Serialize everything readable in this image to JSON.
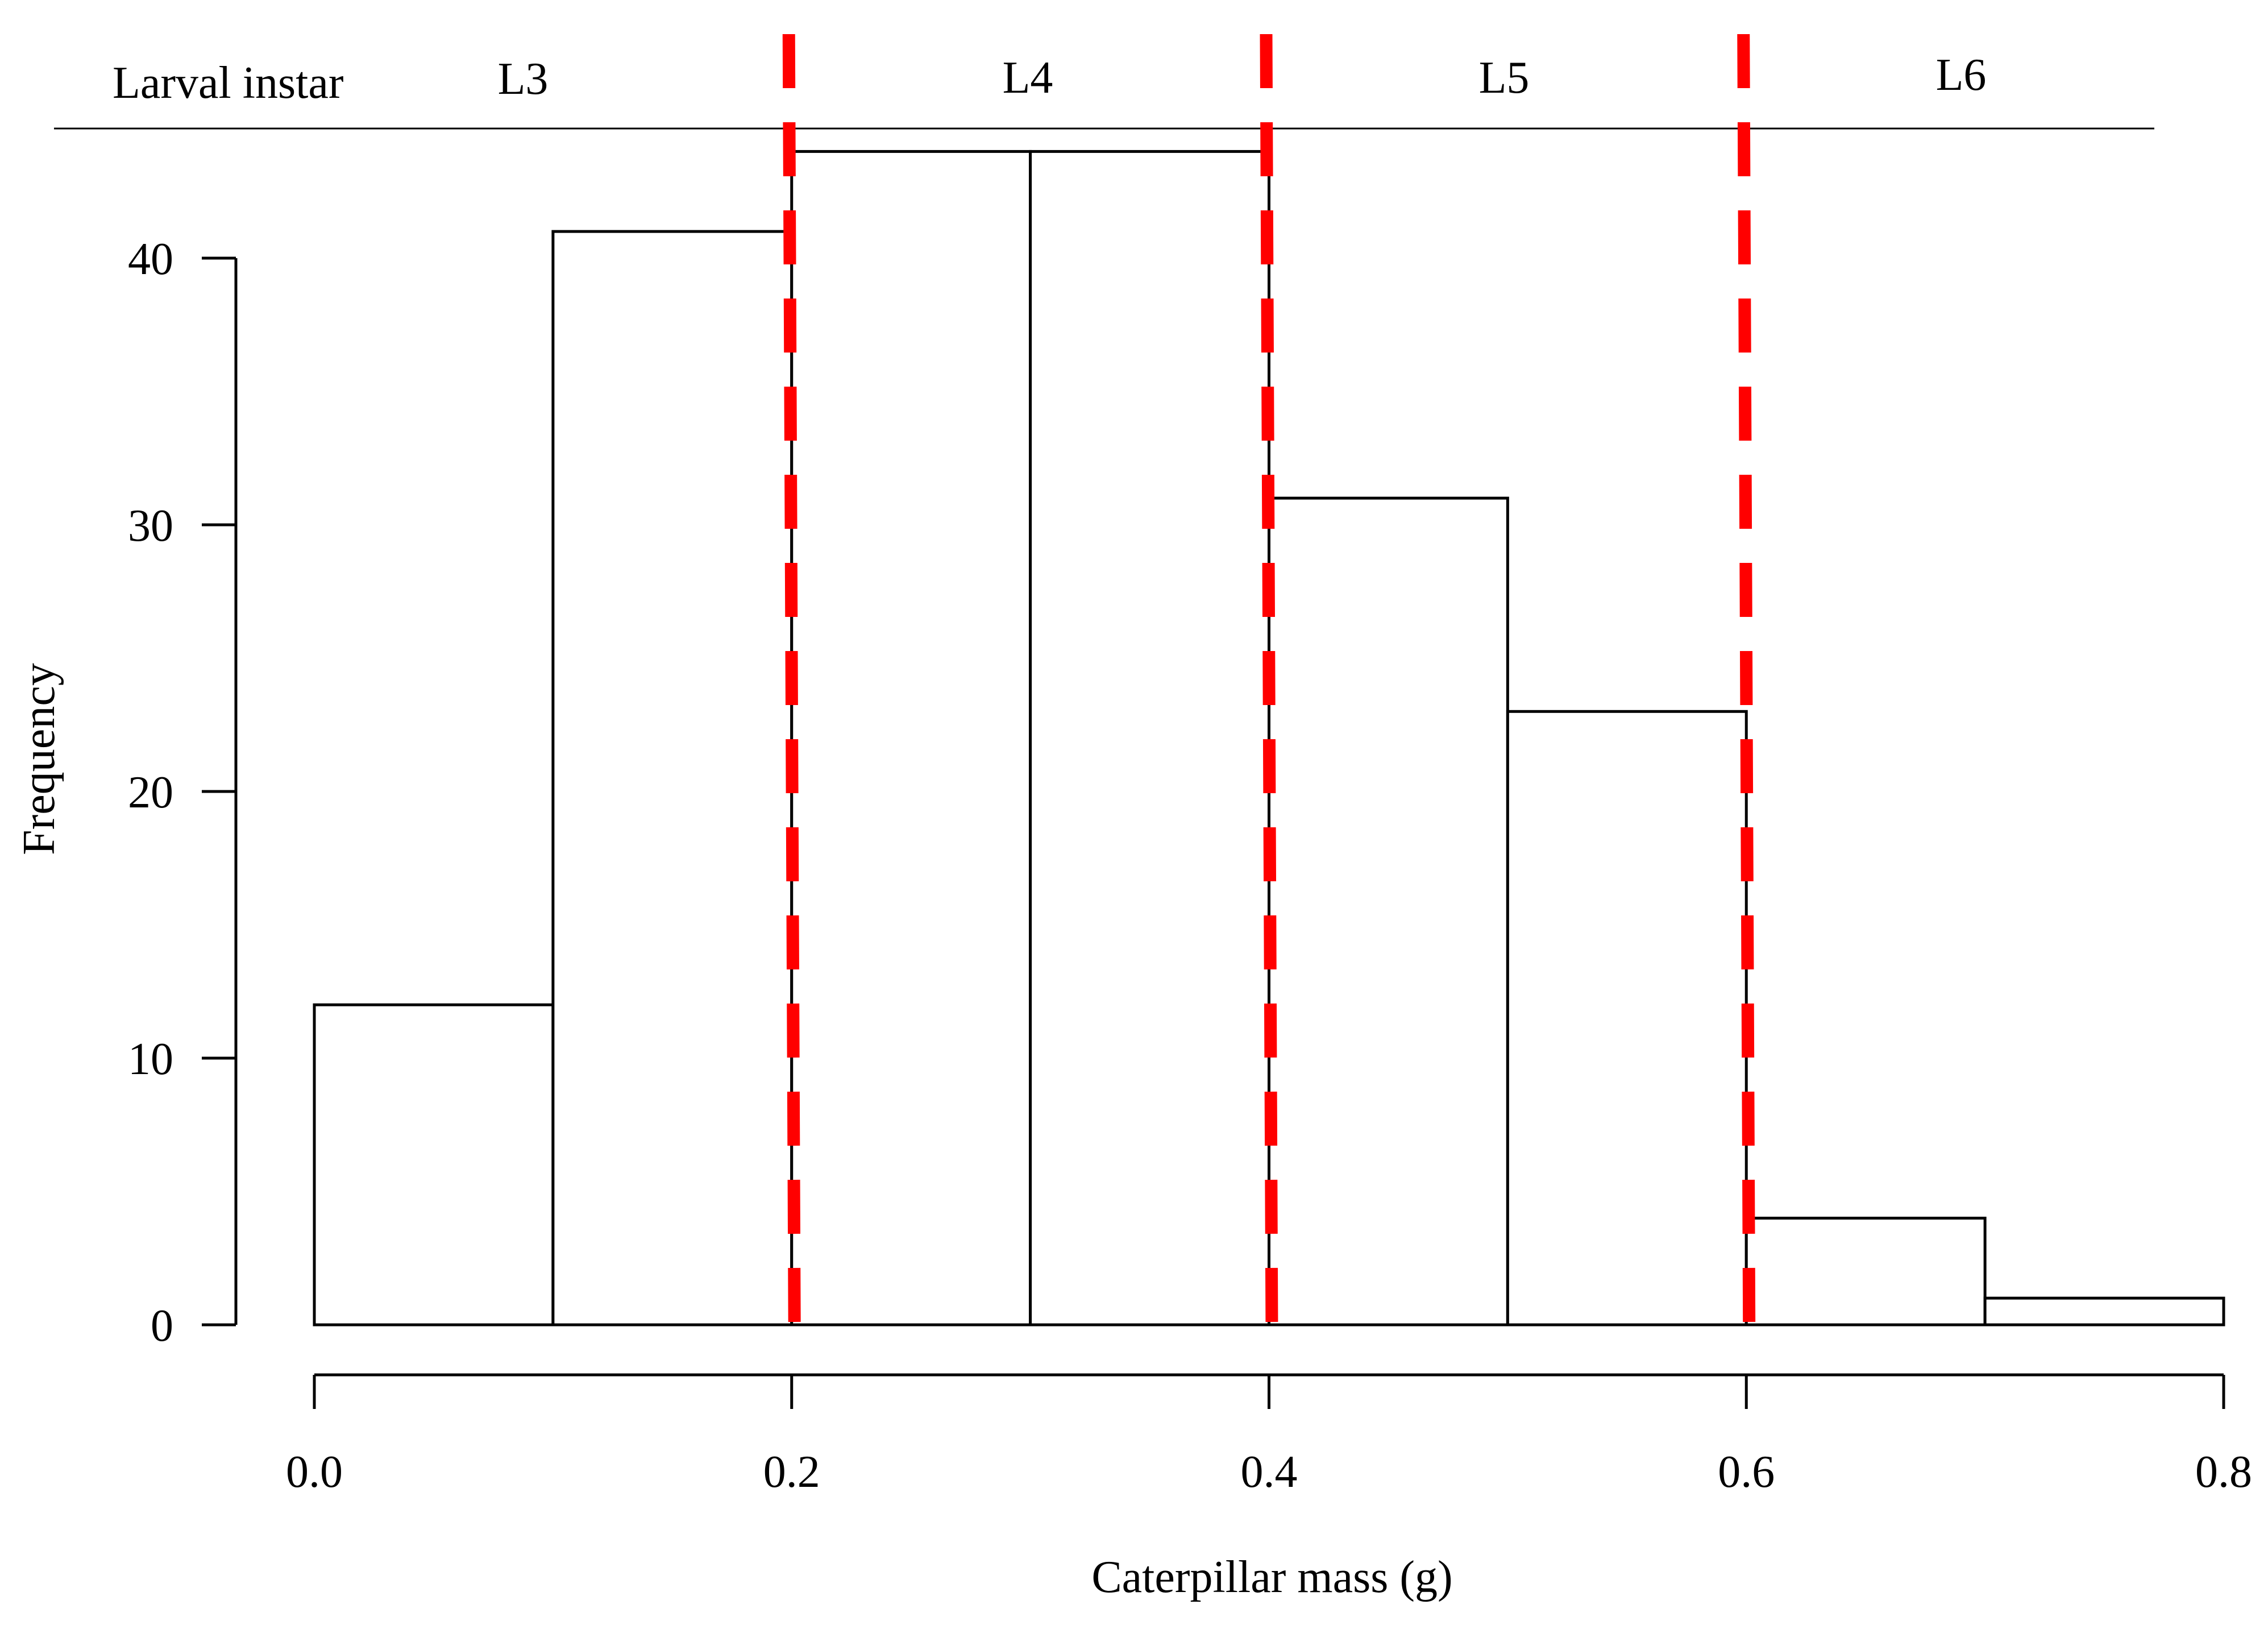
{
  "chart_data": {
    "type": "bar",
    "subtype": "histogram",
    "xlabel": "Caterpillar mass (g)",
    "ylabel": "Frequency",
    "xlim": [
      0.0,
      0.8
    ],
    "ylim": [
      0,
      40
    ],
    "x_ticks": [
      "0.0",
      "0.2",
      "0.4",
      "0.6",
      "0.8"
    ],
    "y_ticks": [
      "0",
      "10",
      "20",
      "30",
      "40"
    ],
    "bins": [
      {
        "start": 0.0,
        "end": 0.1,
        "count": 12
      },
      {
        "start": 0.1,
        "end": 0.2,
        "count": 41
      },
      {
        "start": 0.2,
        "end": 0.3,
        "count": 44
      },
      {
        "start": 0.3,
        "end": 0.4,
        "count": 44
      },
      {
        "start": 0.4,
        "end": 0.5,
        "count": 31
      },
      {
        "start": 0.5,
        "end": 0.6,
        "count": 23
      },
      {
        "start": 0.6,
        "end": 0.7,
        "count": 4
      },
      {
        "start": 0.7,
        "end": 0.8,
        "count": 1
      }
    ],
    "threshold_lines": [
      0.2,
      0.4,
      0.6
    ],
    "threshold_color": "#ff0000",
    "bar_fill": "#ffffff",
    "bar_stroke": "#000000",
    "instar_header": {
      "label": "Larval instar",
      "stages": [
        {
          "label": "L3",
          "center": 0.1
        },
        {
          "label": "L4",
          "center": 0.3
        },
        {
          "label": "L5",
          "center": 0.5
        },
        {
          "label": "L6",
          "center": 0.7
        }
      ]
    },
    "grid": false
  }
}
